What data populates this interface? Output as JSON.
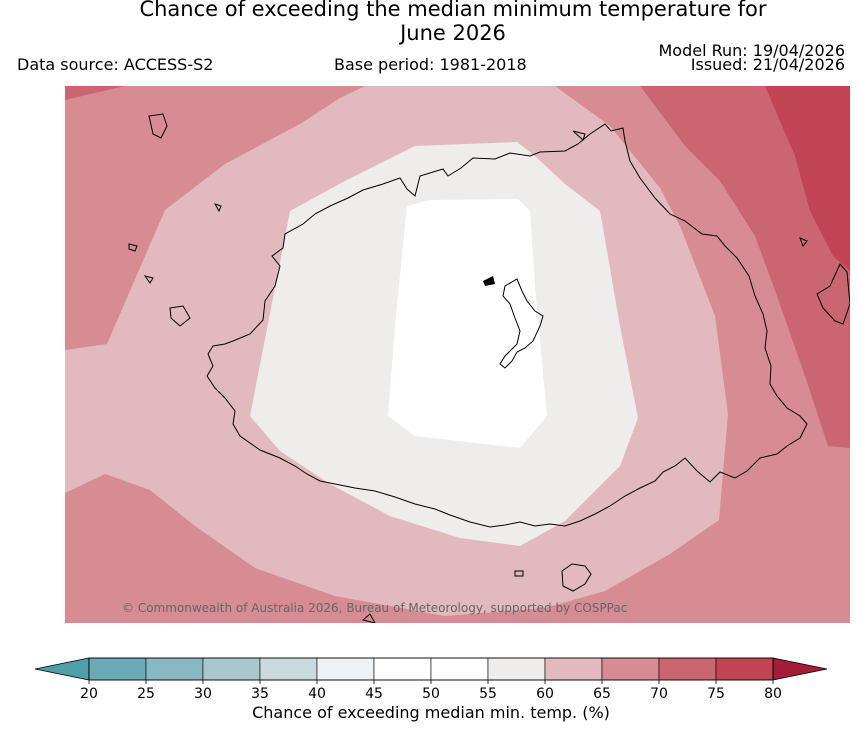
{
  "header": {
    "title_line1": "Chance of exceeding the median minimum temperature for",
    "title_line2": "June 2026",
    "data_source": "Data source: ACCESS-S2",
    "base_period": "Base period: 1981-2018",
    "model_run": "Model Run: 19/04/2026",
    "issued": "Issued: 21/04/2026"
  },
  "map": {
    "copyright": "© Commonwealth of Australia 2026, Bureau of Meteorology, supported by COSPPac"
  },
  "colorbar": {
    "label": "Chance of exceeding median min. temp. (%)",
    "ticks": [
      "20",
      "25",
      "30",
      "35",
      "40",
      "45",
      "50",
      "55",
      "60",
      "65",
      "70",
      "75",
      "80"
    ],
    "colors": [
      "#6aabb7",
      "#89b8c3",
      "#a8c8cd",
      "#cadbdf",
      "#eef2f4",
      "#ffffff",
      "#ffffff",
      "#efedec",
      "#e2babe",
      "#d68c92",
      "#c96670",
      "#c04452"
    ],
    "extend_low": "#4f9fab",
    "extend_high": "#a51c38"
  },
  "legend_colors": {
    "c55": "#efedec",
    "c60": "#e2babe",
    "c65": "#d68c92",
    "c70": "#c96670",
    "c75": "#c04452"
  }
}
